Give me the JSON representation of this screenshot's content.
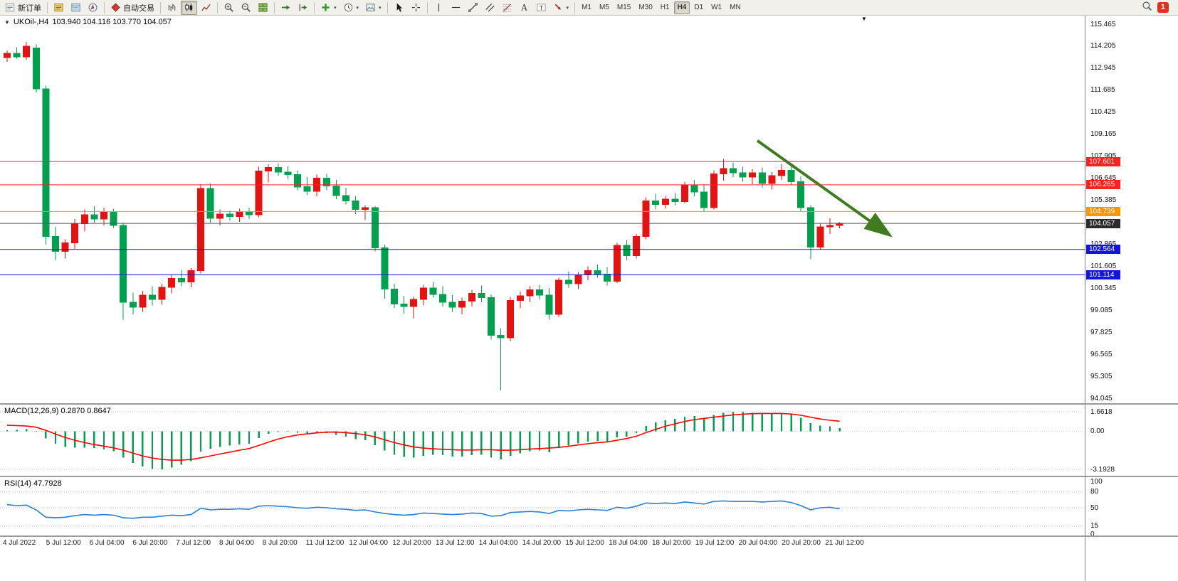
{
  "toolbar": {
    "groups": [
      {
        "items": [
          {
            "icon": "new-order",
            "label": "新订单",
            "name": "new-order-button"
          }
        ]
      },
      {
        "items": [
          {
            "icon": "market-watch",
            "name": "market-watch-button"
          },
          {
            "icon": "data-window",
            "name": "data-window-button"
          },
          {
            "icon": "navigator",
            "name": "navigator-button"
          }
        ]
      },
      {
        "items": [
          {
            "icon": "autotrade",
            "label": "自动交易",
            "name": "autotrading-button"
          }
        ]
      },
      {
        "items": [
          {
            "icon": "bar-chart",
            "name": "bar-chart-button"
          },
          {
            "icon": "candle-chart",
            "name": "candlestick-chart-button",
            "active": true
          },
          {
            "icon": "line-chart",
            "name": "line-chart-button"
          }
        ]
      },
      {
        "items": [
          {
            "icon": "zoom-in",
            "name": "zoom-in-button"
          },
          {
            "icon": "zoom-out",
            "name": "zoom-out-button"
          },
          {
            "icon": "tile-windows",
            "name": "tile-windows-button"
          }
        ]
      },
      {
        "items": [
          {
            "icon": "auto-scroll",
            "name": "auto-scroll-button"
          },
          {
            "icon": "chart-shift",
            "name": "chart-shift-button"
          }
        ]
      },
      {
        "items": [
          {
            "icon": "add-indicator",
            "caret": true,
            "name": "indicators-button"
          },
          {
            "icon": "periods",
            "caret": true,
            "name": "periods-button"
          },
          {
            "icon": "templates",
            "caret": true,
            "name": "templates-button"
          }
        ]
      },
      {
        "items": [
          {
            "icon": "cursor",
            "name": "cursor-button"
          },
          {
            "icon": "crosshair",
            "name": "crosshair-button"
          }
        ]
      },
      {
        "items": [
          {
            "icon": "vertical-line",
            "name": "vertical-line-button"
          },
          {
            "icon": "horizontal-line",
            "name": "horizontal-line-button"
          },
          {
            "icon": "trendline",
            "name": "trendline-button"
          },
          {
            "icon": "channel",
            "name": "equidistant-channel-button"
          },
          {
            "icon": "fibonacci",
            "name": "fibonacci-button"
          },
          {
            "icon": "text",
            "name": "text-button"
          },
          {
            "icon": "text-label",
            "name": "text-label-button"
          },
          {
            "icon": "arrows",
            "caret": true,
            "name": "arrows-button"
          }
        ]
      },
      {
        "items": [
          {
            "timeframes": true
          }
        ]
      }
    ],
    "timeframes": [
      "M1",
      "M5",
      "M15",
      "M30",
      "H1",
      "H4",
      "D1",
      "W1",
      "MN"
    ],
    "active_timeframe": "H4",
    "badge_count": "1"
  },
  "chart": {
    "symbol_period": "UKOil-,H4",
    "ohlc_text": "103.940 104.116 103.770 104.057",
    "macd_label": "MACD(12,26,9) 0.2870 0.8647",
    "rsi_label": "RSI(14) 47.7928",
    "price_axis_labels": [
      "115.465",
      "114.205",
      "112.945",
      "111.685",
      "110.425",
      "109.165",
      "107.905",
      "106.645",
      "105.385",
      "104.125",
      "102.865",
      "101.605",
      "100.345",
      "99.085",
      "97.825",
      "96.565",
      "95.305",
      "94.045"
    ],
    "macd_axis_labels": [
      "1.6618",
      "0.00",
      "-3.1928"
    ],
    "rsi_axis_labels": [
      "100",
      "80",
      "50",
      "15",
      "0"
    ],
    "time_axis_labels": [
      "4 Jul 2022",
      "5 Jul 12:00",
      "6 Jul 04:00",
      "6 Jul 20:00",
      "7 Jul 12:00",
      "8 Jul 04:00",
      "8 Jul 20:00",
      "11 Jul 12:00",
      "12 Jul 04:00",
      "12 Jul 20:00",
      "13 Jul 12:00",
      "14 Jul 04:00",
      "14 Jul 20:00",
      "15 Jul 12:00",
      "18 Jul 04:00",
      "18 Jul 20:00",
      "19 Jul 12:00",
      "20 Jul 04:00",
      "20 Jul 20:00",
      "21 Jul 12:00"
    ]
  },
  "chart_data": {
    "type": "candlestick",
    "symbol": "UKOil",
    "period": "H4",
    "current_price": 104.057,
    "price_range": [
      94.045,
      115.465
    ],
    "colors": {
      "up": "#e51212",
      "down": "#00a14e",
      "current_line": "#555555"
    },
    "candles_ohlc": [
      [
        113.55,
        113.95,
        113.3,
        113.8
      ],
      [
        113.8,
        114.15,
        113.5,
        113.6
      ],
      [
        113.6,
        114.45,
        113.4,
        114.2
      ],
      [
        114.1,
        114.3,
        111.55,
        111.75
      ],
      [
        111.75,
        111.95,
        102.85,
        103.3
      ],
      [
        103.3,
        103.85,
        101.95,
        102.45
      ],
      [
        102.45,
        103.15,
        102.05,
        102.95
      ],
      [
        102.95,
        104.3,
        102.6,
        104.05
      ],
      [
        104.05,
        104.85,
        103.6,
        104.55
      ],
      [
        104.55,
        105.05,
        104.1,
        104.3
      ],
      [
        104.3,
        104.95,
        103.95,
        104.7
      ],
      [
        104.7,
        104.9,
        103.8,
        103.95
      ],
      [
        103.95,
        104.1,
        98.55,
        99.55
      ],
      [
        99.55,
        100.1,
        98.85,
        99.25
      ],
      [
        99.25,
        100.2,
        99.0,
        99.95
      ],
      [
        99.95,
        100.45,
        99.35,
        99.7
      ],
      [
        99.7,
        100.6,
        99.4,
        100.4
      ],
      [
        100.4,
        101.1,
        100.05,
        100.9
      ],
      [
        100.9,
        101.4,
        100.45,
        100.7
      ],
      [
        100.7,
        101.5,
        100.4,
        101.35
      ],
      [
        101.35,
        106.3,
        101.2,
        106.05
      ],
      [
        106.05,
        106.35,
        104.1,
        104.35
      ],
      [
        104.35,
        104.85,
        103.95,
        104.6
      ],
      [
        104.6,
        104.8,
        104.2,
        104.45
      ],
      [
        104.45,
        104.9,
        104.15,
        104.7
      ],
      [
        104.7,
        104.95,
        104.3,
        104.55
      ],
      [
        104.55,
        107.3,
        104.4,
        107.05
      ],
      [
        107.05,
        107.45,
        106.4,
        107.25
      ],
      [
        107.25,
        107.5,
        106.8,
        107.0
      ],
      [
        107.0,
        107.35,
        106.6,
        106.85
      ],
      [
        106.85,
        107.1,
        105.95,
        106.15
      ],
      [
        106.15,
        106.7,
        105.7,
        105.9
      ],
      [
        105.9,
        106.85,
        105.6,
        106.65
      ],
      [
        106.65,
        106.9,
        105.95,
        106.2
      ],
      [
        106.2,
        106.55,
        105.45,
        105.65
      ],
      [
        105.65,
        106.1,
        105.15,
        105.35
      ],
      [
        105.35,
        105.6,
        104.6,
        104.85
      ],
      [
        104.85,
        105.1,
        104.25,
        104.95
      ],
      [
        104.95,
        105.05,
        102.45,
        102.65
      ],
      [
        102.65,
        102.85,
        99.75,
        100.3
      ],
      [
        100.3,
        100.6,
        99.2,
        99.45
      ],
      [
        99.45,
        99.9,
        98.9,
        99.3
      ],
      [
        99.3,
        99.85,
        98.6,
        99.7
      ],
      [
        99.7,
        100.55,
        99.35,
        100.35
      ],
      [
        100.35,
        100.7,
        99.8,
        100.0
      ],
      [
        100.0,
        100.45,
        99.3,
        99.55
      ],
      [
        99.55,
        99.95,
        99.0,
        99.25
      ],
      [
        99.25,
        99.8,
        98.85,
        99.6
      ],
      [
        99.6,
        100.25,
        99.3,
        100.05
      ],
      [
        100.05,
        100.5,
        99.55,
        99.8
      ],
      [
        99.8,
        100.0,
        97.4,
        97.65
      ],
      [
        97.65,
        98.05,
        94.5,
        97.5
      ],
      [
        97.5,
        99.85,
        97.3,
        99.65
      ],
      [
        99.65,
        100.15,
        99.2,
        99.9
      ],
      [
        99.9,
        100.45,
        99.55,
        100.25
      ],
      [
        100.25,
        100.55,
        99.7,
        99.95
      ],
      [
        99.95,
        100.35,
        98.55,
        98.85
      ],
      [
        98.85,
        100.95,
        98.7,
        100.8
      ],
      [
        100.8,
        101.3,
        100.35,
        100.6
      ],
      [
        100.6,
        101.25,
        100.3,
        101.1
      ],
      [
        101.1,
        101.6,
        100.8,
        101.35
      ],
      [
        101.35,
        101.7,
        100.95,
        101.15
      ],
      [
        101.15,
        101.55,
        100.5,
        100.75
      ],
      [
        100.75,
        102.95,
        100.65,
        102.8
      ],
      [
        102.8,
        103.1,
        101.95,
        102.2
      ],
      [
        102.2,
        103.45,
        102.05,
        103.3
      ],
      [
        103.3,
        105.55,
        103.15,
        105.35
      ],
      [
        105.35,
        105.75,
        104.85,
        105.15
      ],
      [
        105.15,
        105.6,
        104.9,
        105.45
      ],
      [
        105.45,
        105.8,
        105.1,
        105.3
      ],
      [
        105.3,
        106.45,
        105.2,
        106.25
      ],
      [
        106.25,
        106.55,
        105.6,
        105.85
      ],
      [
        105.85,
        106.3,
        104.75,
        104.95
      ],
      [
        104.95,
        107.1,
        104.85,
        106.9
      ],
      [
        106.9,
        107.75,
        106.5,
        107.2
      ],
      [
        107.2,
        107.55,
        106.7,
        106.95
      ],
      [
        106.95,
        107.3,
        106.45,
        106.7
      ],
      [
        106.7,
        107.15,
        106.3,
        106.95
      ],
      [
        106.95,
        107.25,
        106.1,
        106.35
      ],
      [
        106.35,
        107.0,
        106.0,
        106.8
      ],
      [
        106.8,
        107.45,
        106.55,
        107.1
      ],
      [
        107.1,
        107.35,
        106.25,
        106.45
      ],
      [
        106.45,
        106.75,
        104.75,
        104.95
      ],
      [
        104.95,
        105.1,
        102.0,
        102.7
      ],
      [
        102.7,
        104.05,
        102.55,
        103.85
      ],
      [
        103.85,
        104.35,
        103.45,
        103.94
      ],
      [
        103.94,
        104.12,
        103.77,
        104.06
      ]
    ],
    "levels": [
      {
        "price": 107.601,
        "color": "#ff2020",
        "label": "107.601"
      },
      {
        "price": 106.265,
        "color": "#ff2020",
        "label": "106.265"
      },
      {
        "price": 104.739,
        "color": "#ff9500",
        "label": "104.739"
      },
      {
        "price": 104.057,
        "color": "#555555",
        "tag_color": "#2b2b2b",
        "label": "104.057",
        "current": true
      },
      {
        "price": 102.564,
        "color": "#1414e0",
        "label": "102.564"
      },
      {
        "price": 101.114,
        "color": "#1414e0",
        "label": "101.114"
      }
    ],
    "indicators": {
      "macd": {
        "params": "12,26,9",
        "value": 0.287,
        "signal_value": 0.8647,
        "range": [
          -3.1928,
          1.6618
        ],
        "histogram_color": "#00a14e",
        "signal_color": "#ff0000",
        "histogram": [
          0.1,
          0.14,
          0.18,
          0.05,
          -0.6,
          -1.05,
          -1.3,
          -1.35,
          -1.35,
          -1.4,
          -1.5,
          -1.65,
          -2.2,
          -2.65,
          -2.95,
          -3.15,
          -3.19,
          -3.05,
          -2.8,
          -2.5,
          -1.7,
          -1.45,
          -1.3,
          -1.2,
          -1.1,
          -1.05,
          -0.55,
          -0.2,
          -0.05,
          -0.02,
          -0.1,
          -0.2,
          -0.15,
          -0.15,
          -0.3,
          -0.45,
          -0.65,
          -0.75,
          -1.15,
          -1.6,
          -1.95,
          -2.15,
          -2.2,
          -2.05,
          -1.95,
          -2.0,
          -2.1,
          -2.1,
          -2.0,
          -1.95,
          -2.2,
          -2.35,
          -2.05,
          -1.85,
          -1.65,
          -1.6,
          -1.75,
          -1.4,
          -1.2,
          -1.0,
          -0.85,
          -0.8,
          -0.9,
          -0.5,
          -0.45,
          -0.15,
          0.45,
          0.75,
          0.95,
          1.05,
          1.25,
          1.3,
          1.15,
          1.4,
          1.58,
          1.66,
          1.62,
          1.58,
          1.52,
          1.5,
          1.55,
          1.45,
          1.15,
          0.7,
          0.5,
          0.42,
          0.287
        ],
        "signal": [
          0.52,
          0.5,
          0.46,
          0.36,
          0.1,
          -0.22,
          -0.5,
          -0.74,
          -0.94,
          -1.1,
          -1.24,
          -1.38,
          -1.58,
          -1.82,
          -2.06,
          -2.24,
          -2.36,
          -2.42,
          -2.42,
          -2.36,
          -2.22,
          -2.06,
          -1.9,
          -1.74,
          -1.58,
          -1.44,
          -1.18,
          -0.9,
          -0.64,
          -0.44,
          -0.3,
          -0.2,
          -0.12,
          -0.06,
          -0.05,
          -0.1,
          -0.18,
          -0.28,
          -0.46,
          -0.7,
          -0.94,
          -1.14,
          -1.3,
          -1.4,
          -1.46,
          -1.5,
          -1.54,
          -1.56,
          -1.56,
          -1.54,
          -1.54,
          -1.58,
          -1.58,
          -1.54,
          -1.48,
          -1.44,
          -1.4,
          -1.34,
          -1.25,
          -1.14,
          -1.03,
          -0.94,
          -0.88,
          -0.74,
          -0.6,
          -0.4,
          -0.1,
          0.18,
          0.44,
          0.64,
          0.84,
          1.0,
          1.1,
          1.2,
          1.3,
          1.4,
          1.46,
          1.5,
          1.52,
          1.52,
          1.52,
          1.47,
          1.37,
          1.2,
          1.05,
          0.94,
          0.8647
        ]
      },
      "rsi": {
        "period": 14,
        "value": 47.7928,
        "levels": [
          80,
          50,
          15
        ],
        "color": "#2a7fd0",
        "series": [
          56,
          54,
          55,
          46,
          32,
          31,
          32,
          35,
          37,
          36,
          37,
          36,
          31,
          30,
          32,
          32,
          34,
          36,
          35,
          37,
          49,
          46,
          47,
          47,
          48,
          47,
          53,
          54,
          53,
          52,
          50,
          49,
          51,
          50,
          48,
          47,
          45,
          46,
          42,
          39,
          37,
          36,
          37,
          40,
          39,
          38,
          37,
          38,
          40,
          39,
          34,
          35,
          41,
          42,
          43,
          42,
          39,
          45,
          44,
          46,
          47,
          46,
          45,
          51,
          49,
          53,
          59,
          58,
          59,
          58,
          61,
          59,
          57,
          62,
          63,
          62,
          62,
          62,
          61,
          62,
          63,
          60,
          54,
          46,
          50,
          51,
          47.79
        ]
      }
    },
    "annotation_arrow": {
      "from_bar": 77.5,
      "from_price": 108.8,
      "to_bar": 91,
      "to_price": 103.45,
      "color": "#3e7c1f"
    }
  }
}
